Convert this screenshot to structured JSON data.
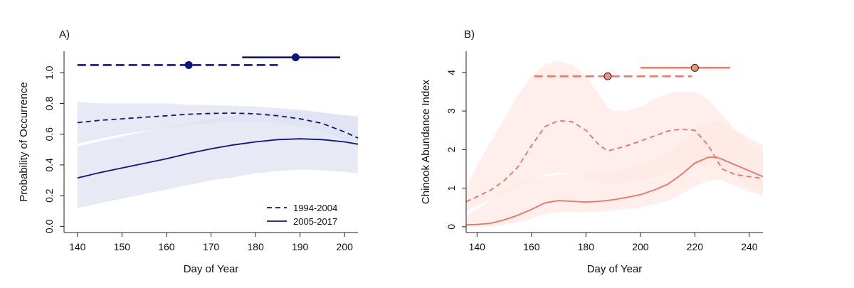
{
  "chart_data": [
    {
      "type": "line",
      "panel_label": "A)",
      "xlabel": "Day of Year",
      "ylabel": "Probability of Occurrence",
      "xlim": [
        137,
        203
      ],
      "ylim": [
        -0.04,
        1.14
      ],
      "xticks": [
        140,
        150,
        160,
        170,
        180,
        190,
        200
      ],
      "yticks": [
        0.0,
        0.2,
        0.4,
        0.6,
        0.8,
        1.0
      ],
      "ytick_labels": [
        "0.0",
        "0.2",
        "0.4",
        "0.6",
        "0.8",
        "1.0"
      ],
      "color": "#0b1680",
      "band_color": "#dfe1f2",
      "legend_position": "bottom-right",
      "series": [
        {
          "name": "1994-2004",
          "style": "dashed",
          "x": [
            140,
            145,
            150,
            155,
            160,
            165,
            170,
            175,
            180,
            185,
            190,
            195,
            200,
            203
          ],
          "y": [
            0.675,
            0.69,
            0.7,
            0.71,
            0.72,
            0.73,
            0.735,
            0.737,
            0.733,
            0.72,
            0.7,
            0.67,
            0.615,
            0.575
          ],
          "lower": [
            0.54,
            0.57,
            0.6,
            0.62,
            0.64,
            0.66,
            0.67,
            0.68,
            0.68,
            0.67,
            0.65,
            0.62,
            0.56,
            0.52
          ],
          "upper": [
            0.81,
            0.8,
            0.8,
            0.8,
            0.8,
            0.79,
            0.79,
            0.785,
            0.78,
            0.77,
            0.76,
            0.74,
            0.72,
            0.71
          ],
          "timing": {
            "start": 140,
            "end": 185,
            "point": 165
          }
        },
        {
          "name": "2005-2017",
          "style": "solid",
          "x": [
            140,
            145,
            150,
            155,
            160,
            165,
            170,
            175,
            180,
            185,
            190,
            195,
            200,
            203
          ],
          "y": [
            0.315,
            0.35,
            0.38,
            0.41,
            0.44,
            0.475,
            0.505,
            0.53,
            0.55,
            0.565,
            0.57,
            0.565,
            0.55,
            0.535
          ],
          "lower": [
            0.12,
            0.15,
            0.18,
            0.21,
            0.24,
            0.27,
            0.3,
            0.32,
            0.345,
            0.36,
            0.37,
            0.365,
            0.355,
            0.345
          ],
          "upper": [
            0.52,
            0.555,
            0.585,
            0.615,
            0.645,
            0.675,
            0.7,
            0.72,
            0.735,
            0.745,
            0.75,
            0.74,
            0.725,
            0.715
          ],
          "timing": {
            "start": 177,
            "end": 199,
            "point": 189
          }
        }
      ],
      "timing_y": [
        1.05,
        1.1
      ]
    },
    {
      "type": "line",
      "panel_label": "B)",
      "xlabel": "Day of Year",
      "ylabel": "Chinook Abundance Index",
      "xlim": [
        136,
        245
      ],
      "ylim": [
        -0.15,
        4.55
      ],
      "xticks": [
        140,
        160,
        180,
        200,
        220,
        240
      ],
      "yticks": [
        0,
        1,
        2,
        3,
        4
      ],
      "ytick_labels": [
        "0",
        "1",
        "2",
        "3",
        "4"
      ],
      "color": "#f2715f",
      "band_color": "#fde9e5",
      "point_fill": "#f28f7d",
      "series": [
        {
          "name": "1994-2004",
          "style": "dashed",
          "x": [
            136,
            140,
            145,
            150,
            155,
            160,
            165,
            170,
            175,
            180,
            185,
            188,
            190,
            195,
            200,
            205,
            210,
            215,
            220,
            225,
            230,
            235,
            240,
            245
          ],
          "y": [
            0.65,
            0.78,
            0.95,
            1.2,
            1.55,
            2.1,
            2.6,
            2.75,
            2.72,
            2.5,
            2.1,
            1.97,
            2.0,
            2.1,
            2.22,
            2.35,
            2.48,
            2.53,
            2.5,
            2.1,
            1.5,
            1.35,
            1.3,
            1.25
          ],
          "lower": [
            0.4,
            0.55,
            0.7,
            0.85,
            1.0,
            1.2,
            1.35,
            1.4,
            1.35,
            1.25,
            1.15,
            1.1,
            1.1,
            1.15,
            1.2,
            1.3,
            1.4,
            1.5,
            1.6,
            1.6,
            1.5,
            1.3,
            1.0,
            0.9
          ],
          "upper": [
            1.0,
            1.6,
            2.2,
            2.8,
            3.4,
            3.9,
            4.2,
            4.3,
            4.2,
            3.9,
            3.4,
            3.1,
            3.0,
            3.0,
            3.1,
            3.3,
            3.45,
            3.5,
            3.5,
            3.3,
            2.9,
            2.5,
            2.1,
            1.9
          ],
          "timing": {
            "start": 161,
            "end": 219,
            "point": 188
          }
        },
        {
          "name": "2005-2017",
          "style": "solid",
          "x": [
            136,
            140,
            145,
            150,
            155,
            160,
            165,
            170,
            175,
            180,
            185,
            190,
            195,
            200,
            205,
            210,
            215,
            220,
            225,
            228,
            230,
            235,
            240,
            245
          ],
          "y": [
            0.05,
            0.06,
            0.09,
            0.18,
            0.3,
            0.45,
            0.62,
            0.68,
            0.66,
            0.64,
            0.66,
            0.7,
            0.76,
            0.83,
            0.95,
            1.1,
            1.35,
            1.65,
            1.8,
            1.8,
            1.75,
            1.6,
            1.45,
            1.3
          ],
          "lower": [
            0.0,
            0.0,
            0.0,
            0.05,
            0.12,
            0.22,
            0.32,
            0.38,
            0.38,
            0.38,
            0.4,
            0.42,
            0.46,
            0.5,
            0.58,
            0.68,
            0.85,
            1.05,
            1.2,
            1.22,
            1.2,
            1.05,
            0.9,
            0.8
          ],
          "upper": [
            0.3,
            0.45,
            0.7,
            0.95,
            1.15,
            1.25,
            1.3,
            1.35,
            1.35,
            1.35,
            1.4,
            1.45,
            1.5,
            1.6,
            1.75,
            1.95,
            2.2,
            2.5,
            2.7,
            2.75,
            2.7,
            2.5,
            2.3,
            2.1
          ],
          "timing": {
            "start": 200,
            "end": 233,
            "point": 220
          }
        }
      ],
      "timing_y": [
        3.9,
        4.12
      ]
    }
  ]
}
